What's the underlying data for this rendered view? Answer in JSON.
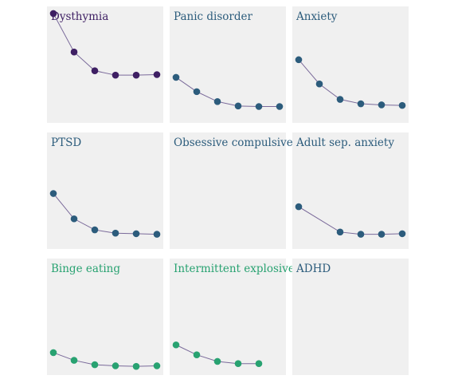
{
  "chart_data": [
    {
      "type": "line",
      "title": "Dysthymia",
      "color": "#3e1f63",
      "x": [
        1,
        2,
        3,
        4,
        5,
        6
      ],
      "values": [
        95,
        60,
        43,
        39,
        39,
        39.5
      ]
    },
    {
      "type": "line",
      "title": "Panic disorder",
      "color": "#2c5c7c",
      "x": [
        1,
        2,
        3,
        4,
        5,
        6
      ],
      "values": [
        37,
        24,
        15,
        11,
        10.5,
        10.5
      ]
    },
    {
      "type": "line",
      "title": "Anxiety",
      "color": "#2c5c7c",
      "x": [
        1,
        2,
        3,
        4,
        5,
        6
      ],
      "values": [
        53,
        31,
        17,
        13,
        12,
        11.5
      ]
    },
    {
      "type": "line",
      "title": "PTSD",
      "color": "#2c5c7c",
      "x": [
        1,
        2,
        3,
        4,
        5,
        6
      ],
      "values": [
        46,
        23,
        13,
        10,
        9.5,
        9
      ]
    },
    {
      "type": "line",
      "title": "Obsessive compulsive",
      "color": "#2c5c7c",
      "x": [],
      "values": []
    },
    {
      "type": "line",
      "title": "Adult sep. anxiety",
      "color": "#2c5c7c",
      "x": [
        1,
        3,
        4,
        5,
        6
      ],
      "values": [
        34,
        11,
        9,
        9,
        9.5
      ]
    },
    {
      "type": "line",
      "title": "Binge eating",
      "color": "#28a271",
      "x": [
        1,
        2,
        3,
        4,
        5,
        6
      ],
      "values": [
        16,
        9,
        5,
        4,
        3.5,
        4
      ]
    },
    {
      "type": "line",
      "title": "Intermittent explosive",
      "color": "#28a271",
      "x": [
        1,
        2,
        3,
        4,
        5
      ],
      "values": [
        23,
        14,
        8,
        6,
        6
      ]
    },
    {
      "type": "line",
      "title": "ADHD",
      "color": "#2c5c7c",
      "x": [],
      "values": []
    }
  ],
  "shared": {
    "xlim": [
      1,
      6
    ],
    "ylim": [
      0,
      100
    ],
    "grid": false,
    "line_color": "#7a6a9a"
  }
}
